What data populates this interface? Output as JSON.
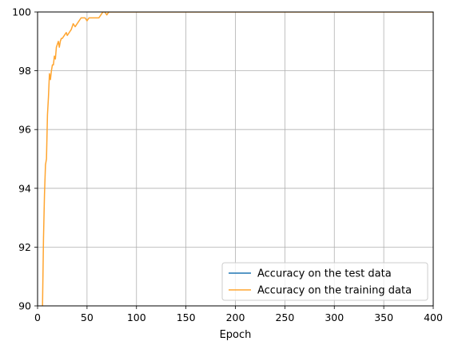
{
  "chart_data": {
    "type": "line",
    "title": "",
    "xlabel": "Epoch",
    "ylabel": "",
    "xlim": [
      0,
      400
    ],
    "ylim": [
      90,
      100
    ],
    "xticks": [
      0,
      50,
      100,
      150,
      200,
      250,
      300,
      350,
      400
    ],
    "yticks": [
      90,
      92,
      94,
      96,
      98,
      100
    ],
    "grid": true,
    "legend_position": "lower-right",
    "series": [
      {
        "name": "Accuracy on the test data",
        "color": "#1f77b4",
        "x": [],
        "y": []
      },
      {
        "name": "Accuracy on the training data",
        "color": "#ffa530",
        "x": [
          5,
          6,
          7,
          8,
          9,
          10,
          11,
          12,
          13,
          14,
          15,
          16,
          17,
          18,
          19,
          20,
          21,
          22,
          23,
          24,
          25,
          27,
          29,
          30,
          32,
          34,
          36,
          38,
          40,
          42,
          44,
          46,
          48,
          50,
          52,
          54,
          56,
          58,
          60,
          62,
          64,
          66,
          68,
          70,
          72,
          74,
          76,
          80,
          100,
          150,
          200,
          250,
          300,
          350,
          400
        ],
        "y": [
          90.0,
          92.3,
          93.8,
          94.8,
          95.0,
          96.5,
          97.1,
          97.9,
          97.7,
          98.0,
          98.2,
          98.2,
          98.5,
          98.4,
          98.8,
          98.9,
          99.0,
          98.8,
          99.0,
          99.1,
          99.1,
          99.2,
          99.3,
          99.2,
          99.3,
          99.4,
          99.6,
          99.5,
          99.6,
          99.7,
          99.8,
          99.8,
          99.8,
          99.7,
          99.8,
          99.8,
          99.8,
          99.8,
          99.8,
          99.8,
          99.9,
          100.0,
          100.0,
          99.9,
          100.0,
          100.0,
          100.0,
          100.0,
          100.0,
          100.0,
          100.0,
          100.0,
          100.0,
          100.0,
          100.0
        ]
      }
    ]
  }
}
